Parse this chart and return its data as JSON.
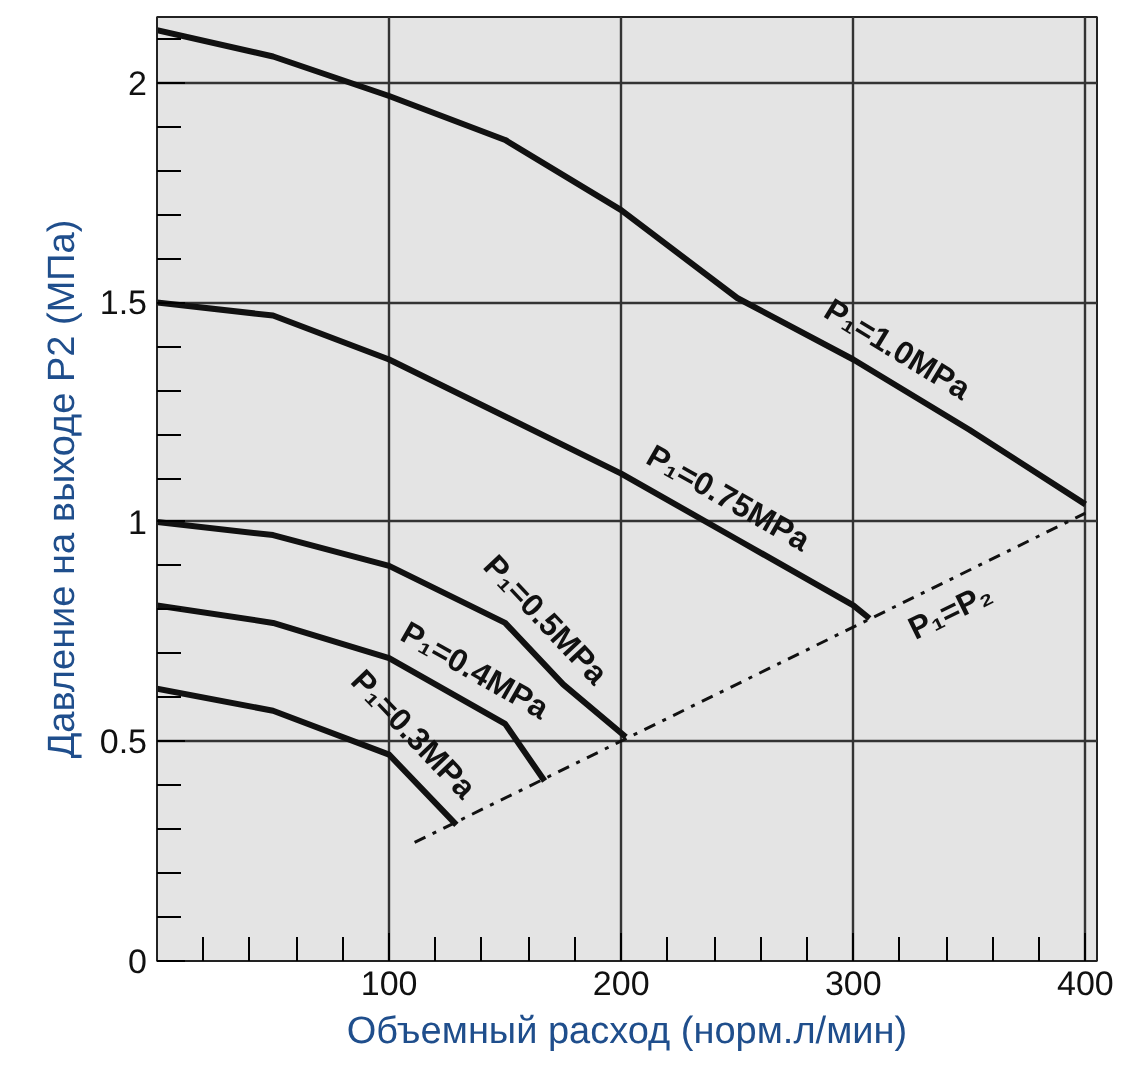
{
  "chart_data": {
    "type": "line",
    "xlabel": "Объемный расход (норм.л/мин)",
    "ylabel": "Давление на выходе P2 (МПа)",
    "xlim": [
      0,
      405
    ],
    "ylim": [
      0,
      2.15
    ],
    "xticks": [
      100,
      200,
      300,
      400
    ],
    "yticks": [
      0,
      0.5,
      1,
      1.5,
      2
    ],
    "grid": true,
    "marker": "none",
    "series": [
      {
        "name": "P₁=1.0MPa",
        "color": "#111111",
        "line_style": "solid",
        "x": [
          0,
          50,
          100,
          150,
          200,
          250,
          300,
          350,
          400
        ],
        "values": [
          2.12,
          2.06,
          1.97,
          1.87,
          1.71,
          1.51,
          1.37,
          1.21,
          1.04
        ]
      },
      {
        "name": "P₁=0.75MPa",
        "color": "#111111",
        "line_style": "solid",
        "x": [
          0,
          50,
          100,
          150,
          200,
          250,
          300,
          307
        ],
        "values": [
          1.5,
          1.47,
          1.37,
          1.24,
          1.11,
          0.96,
          0.81,
          0.78
        ]
      },
      {
        "name": "P₁=0.5MPa",
        "color": "#111111",
        "line_style": "solid",
        "x": [
          0,
          50,
          100,
          150,
          175,
          202
        ],
        "values": [
          1.0,
          0.97,
          0.9,
          0.77,
          0.63,
          0.51
        ]
      },
      {
        "name": "P₁=0.4MPa",
        "color": "#111111",
        "line_style": "solid",
        "x": [
          0,
          50,
          100,
          150,
          167
        ],
        "values": [
          0.81,
          0.77,
          0.69,
          0.54,
          0.41
        ]
      },
      {
        "name": "P₁=0.3MPa",
        "color": "#111111",
        "line_style": "solid",
        "x": [
          0,
          50,
          100,
          129
        ],
        "values": [
          0.62,
          0.57,
          0.47,
          0.31
        ]
      },
      {
        "name": "P₁=P₂",
        "color": "#111111",
        "line_style": "dashdot",
        "x": [
          111,
          400
        ],
        "values": [
          0.27,
          1.02
        ]
      }
    ]
  }
}
